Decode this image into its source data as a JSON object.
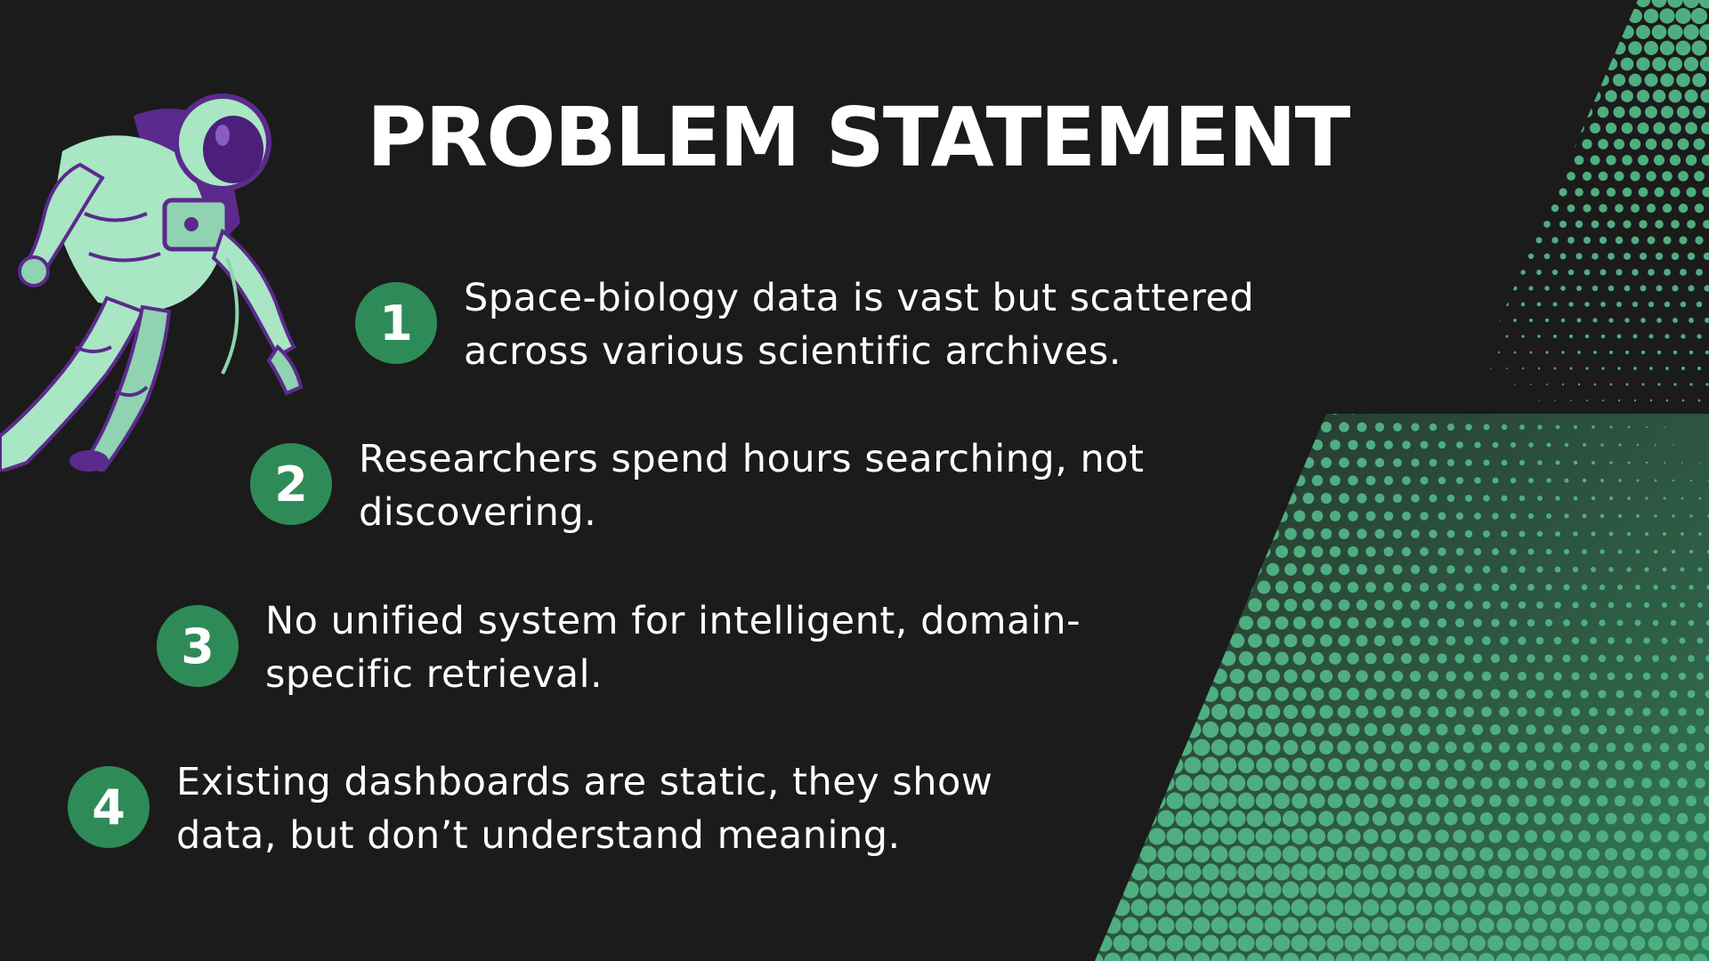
{
  "slide": {
    "title": "PROBLEM STATEMENT",
    "accent_color": "#2e8b57",
    "halftone_color": "#4fae7f",
    "background_color": "#1b1b1b",
    "points": [
      {
        "number": "1",
        "text": "Space-biology data is vast but scattered across various scientific archives."
      },
      {
        "number": "2",
        "text": "Researchers spend hours searching, not discovering."
      },
      {
        "number": "3",
        "text": "No unified system for intelligent, domain-specific retrieval."
      },
      {
        "number": "4",
        "text": "Existing dashboards are static, they show data, but don’t understand meaning."
      }
    ]
  }
}
